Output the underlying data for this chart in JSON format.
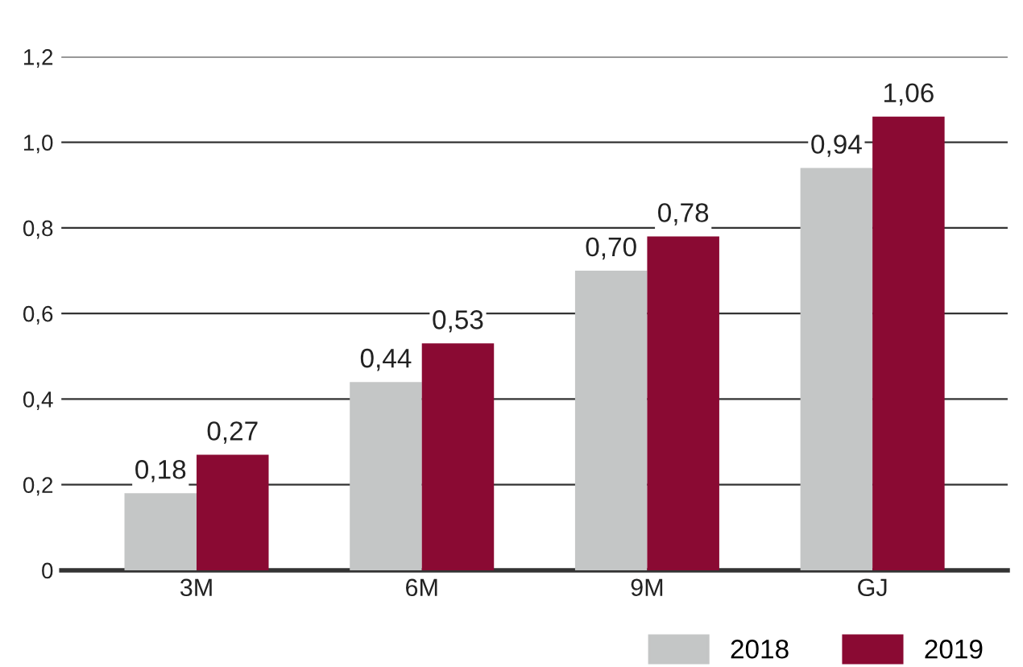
{
  "chart_data": {
    "type": "bar",
    "categories": [
      "3M",
      "6M",
      "9M",
      "GJ"
    ],
    "series": [
      {
        "name": "2018",
        "color": "#c4c6c6",
        "values": [
          0.18,
          0.44,
          0.7,
          0.94
        ],
        "value_labels": [
          "0,18",
          "0,44",
          "0,70",
          "0,94"
        ]
      },
      {
        "name": "2019",
        "color": "#8a0a33",
        "values": [
          0.27,
          0.53,
          0.78,
          1.06
        ],
        "value_labels": [
          "0,27",
          "0,53",
          "0,78",
          "1,06"
        ]
      }
    ],
    "ylim": [
      0,
      1.2
    ],
    "yticks": [
      {
        "value": 0,
        "label": "0"
      },
      {
        "value": 0.2,
        "label": "0,2"
      },
      {
        "value": 0.4,
        "label": "0,4"
      },
      {
        "value": 0.6,
        "label": "0,6"
      },
      {
        "value": 0.8,
        "label": "0,8"
      },
      {
        "value": 1.0,
        "label": "1,0"
      },
      {
        "value": 1.2,
        "label": "1,2"
      }
    ],
    "grid": "y",
    "legend": "bottom right"
  }
}
